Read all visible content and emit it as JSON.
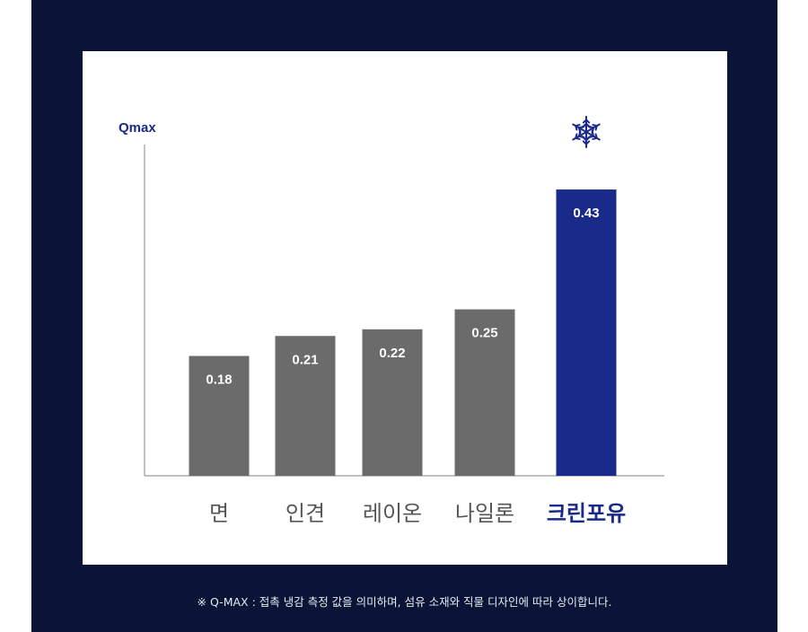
{
  "colors": {
    "background": "#0b1437",
    "card": "#ffffff",
    "bar_default": "#6b6b6b",
    "bar_highlight": "#1a2a8a",
    "axis": "#9a9a9a",
    "axis_label": "#1a2a8a",
    "category_default": "#555555",
    "category_highlight": "#1a2a8a",
    "value_label": "#ffffff",
    "footnote": "#e6e8f0"
  },
  "footnote": "※ Q-MAX : 접촉 냉감 측정 값을 의미하며, 섬유 소재와 직물 디자인에 따라 상이합니다.",
  "highlight_icon": "snowflake-icon",
  "chart_data": {
    "type": "bar",
    "title": "",
    "xlabel": "",
    "ylabel": "Qmax",
    "categories": [
      "면",
      "인견",
      "레이온",
      "나일론",
      "크린포유"
    ],
    "values": [
      0.18,
      0.21,
      0.22,
      0.25,
      0.43
    ],
    "value_labels": [
      "0.18",
      "0.21",
      "0.22",
      "0.25",
      "0.43"
    ],
    "highlight_index": 4,
    "ylim": [
      0,
      0.48
    ],
    "grid": false,
    "legend": "none"
  }
}
